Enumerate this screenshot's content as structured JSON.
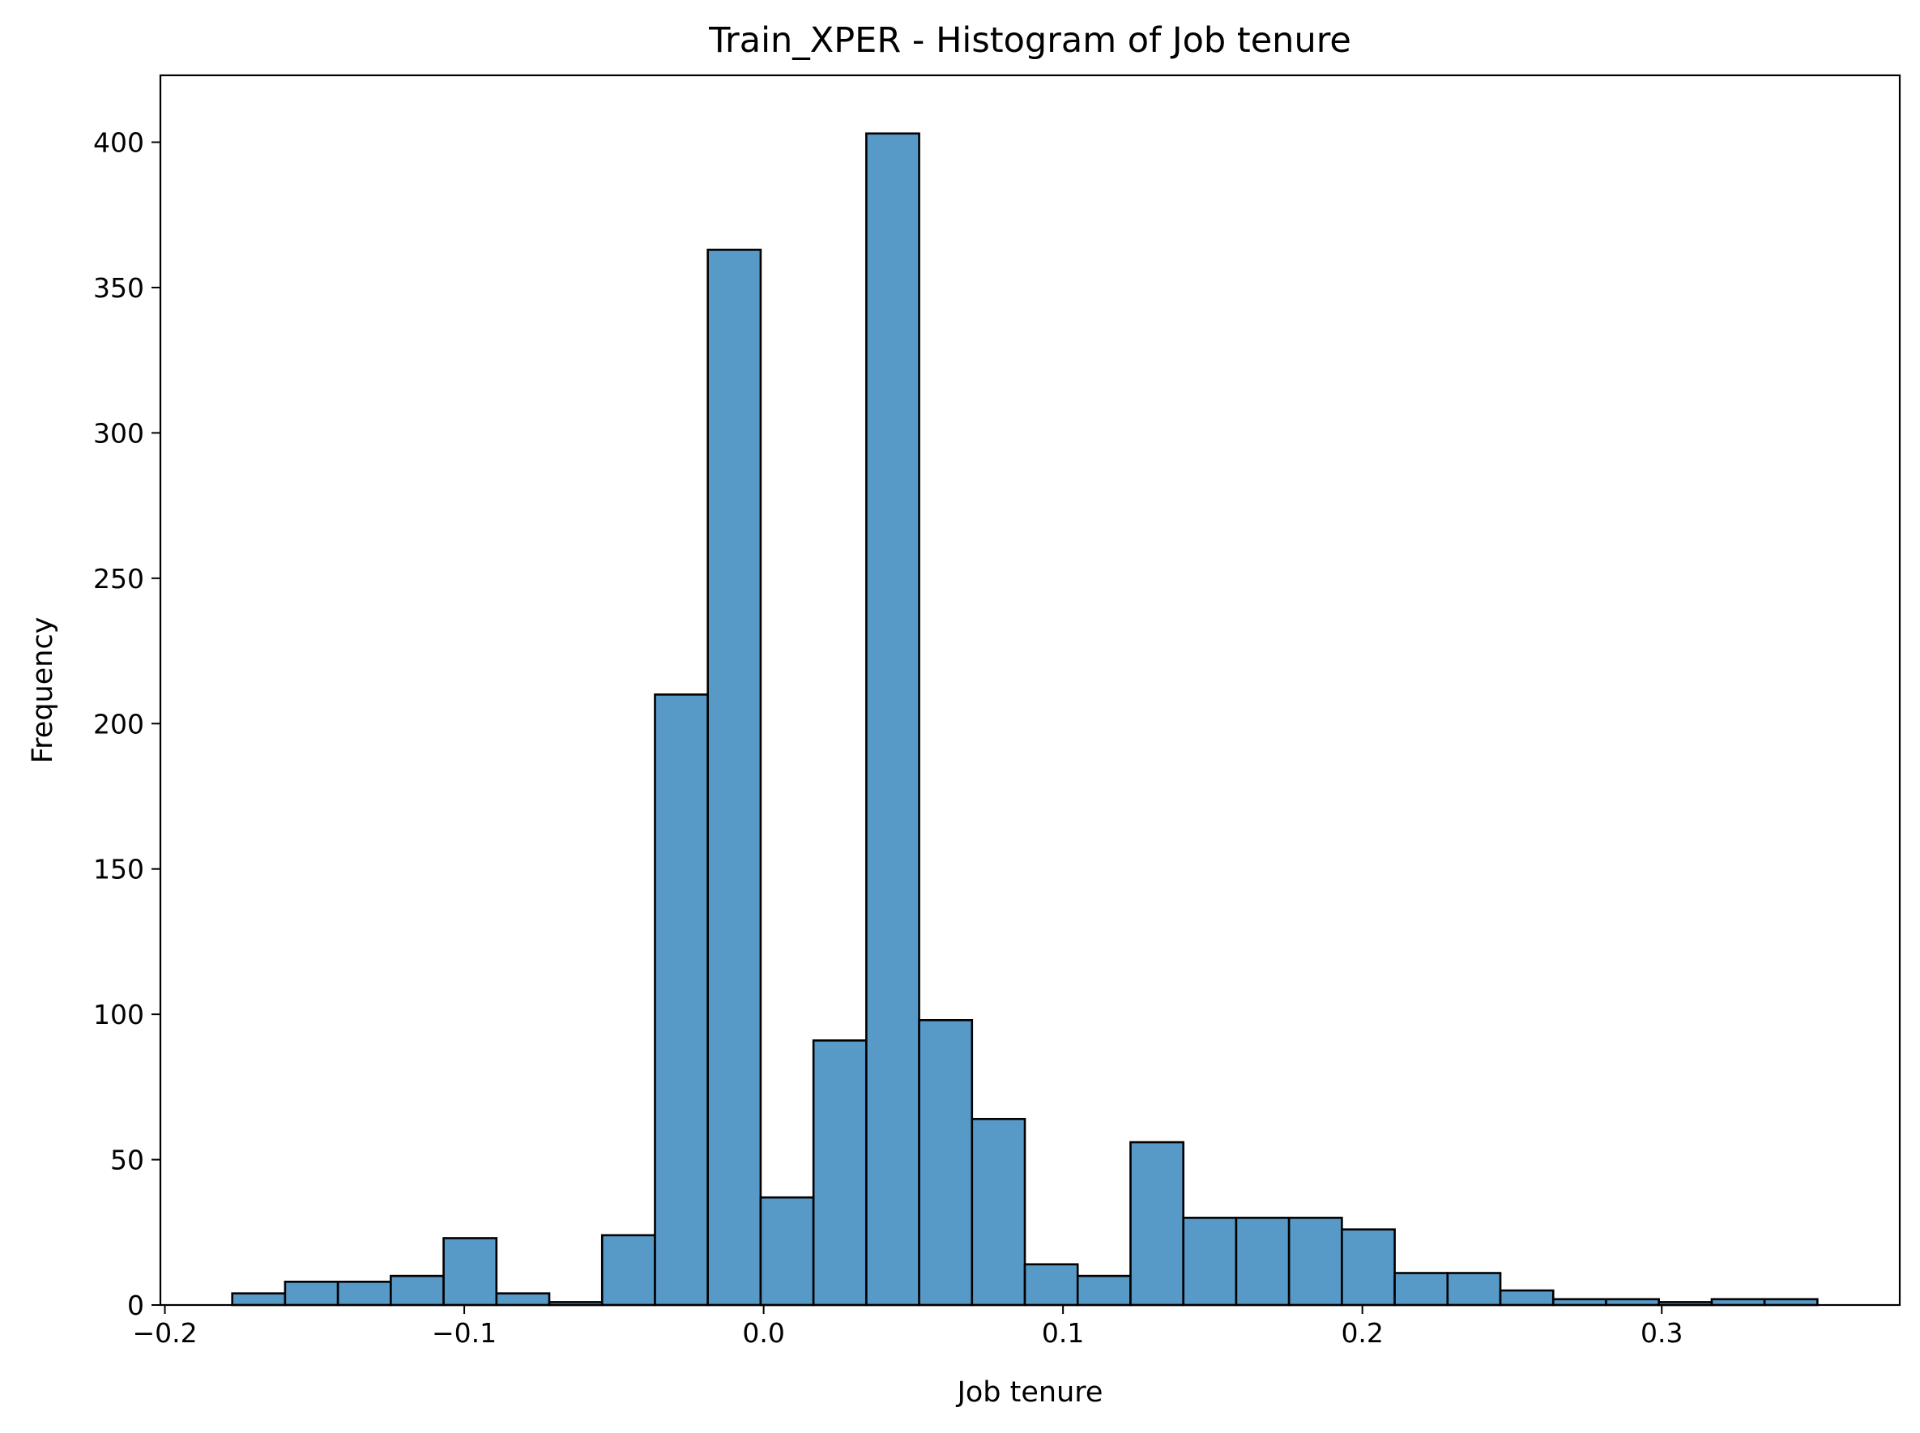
{
  "chart_data": {
    "type": "bar",
    "title": "Train_XPER - Histogram of Job tenure",
    "xlabel": "Job tenure",
    "ylabel": "Frequency",
    "xlim": [
      -0.2015,
      0.3795
    ],
    "ylim": [
      0,
      423
    ],
    "xticks": [
      -0.2,
      -0.1,
      0.0,
      0.1,
      0.2,
      0.3
    ],
    "xtick_labels": [
      "−0.2",
      "−0.1",
      "0.0",
      "0.1",
      "0.2",
      "0.3"
    ],
    "yticks": [
      0,
      50,
      100,
      150,
      200,
      250,
      300,
      350,
      400
    ],
    "ytick_labels": [
      "0",
      "50",
      "100",
      "150",
      "200",
      "250",
      "300",
      "350",
      "400"
    ],
    "bin_start": -0.1775,
    "bin_width": 0.01765,
    "values": [
      4,
      8,
      8,
      10,
      23,
      4,
      1,
      24,
      210,
      363,
      37,
      91,
      403,
      98,
      64,
      14,
      10,
      56,
      30,
      30,
      30,
      26,
      11,
      11,
      5,
      2,
      2,
      1,
      2,
      2
    ],
    "grid": false,
    "legend": "none",
    "bar_color": "#5799c7",
    "edge_color": "#000000"
  }
}
